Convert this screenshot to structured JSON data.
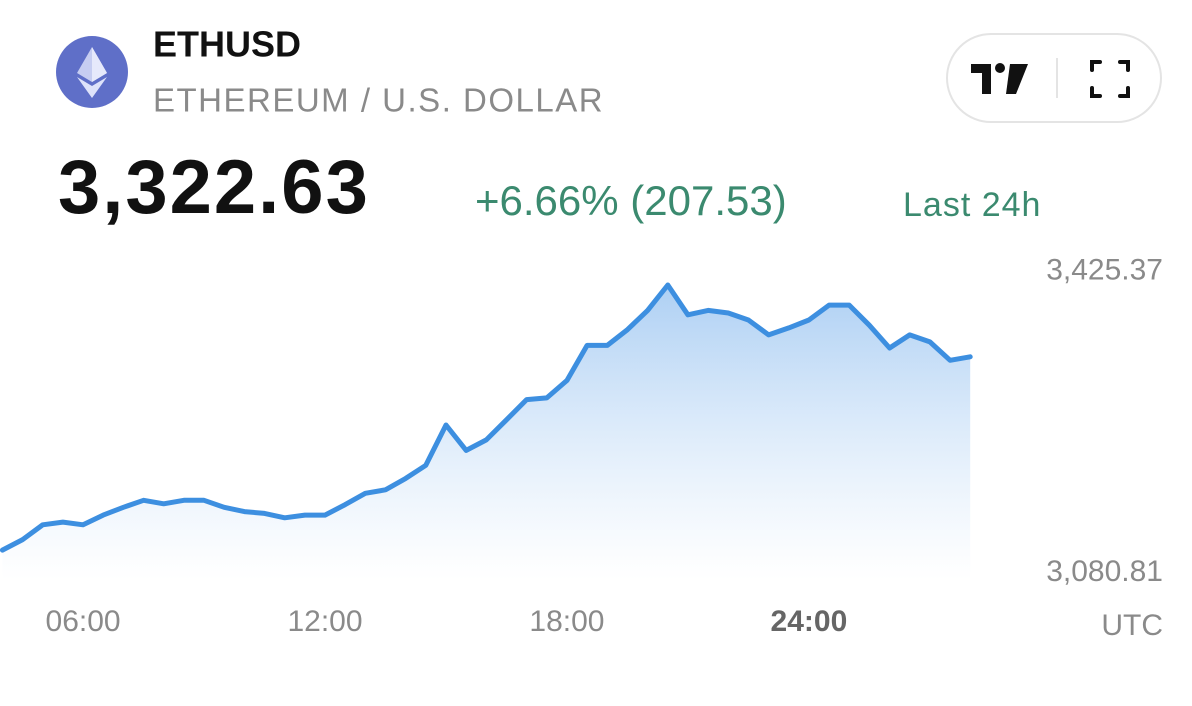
{
  "header": {
    "symbol": "ETHUSD",
    "name": "ETHEREUM / U.S. DOLLAR",
    "price": "3,322.63",
    "change": "+6.66% (207.53)",
    "period": "Last 24h"
  },
  "chart_data": {
    "type": "area",
    "color": "#3d8fe0",
    "x": [
      4,
      4.5,
      5,
      5.5,
      6,
      6.5,
      7,
      7.5,
      8,
      8.5,
      9,
      9.5,
      10,
      10.5,
      11,
      11.5,
      12,
      12.5,
      13,
      13.5,
      14,
      14.5,
      15,
      15.5,
      16,
      16.5,
      17,
      17.5,
      18,
      18.5,
      19,
      19.5,
      20,
      20.5,
      21,
      21.5,
      22,
      22.5,
      23,
      23.5,
      24,
      24.5,
      25,
      25.5,
      26,
      26.5,
      27,
      27.5,
      28
    ],
    "values": [
      3107,
      3119,
      3136,
      3139,
      3136,
      3147,
      3156,
      3164,
      3160,
      3164,
      3164,
      3156,
      3151,
      3149,
      3144,
      3147,
      3147,
      3159,
      3172,
      3176,
      3189,
      3204,
      3250,
      3221,
      3233,
      3256,
      3279,
      3281,
      3301,
      3341,
      3341,
      3359,
      3381,
      3410,
      3376,
      3381,
      3378,
      3370,
      3353,
      3361,
      3370,
      3387,
      3387,
      3364,
      3338,
      3353,
      3345,
      3324,
      3328
    ],
    "xlim": [
      3.94,
      33.5
    ],
    "ylim": [
      3050,
      3450
    ],
    "xticks": [
      {
        "value": 6,
        "label": "06:00"
      },
      {
        "value": 12,
        "label": "12:00"
      },
      {
        "value": 18,
        "label": "18:00"
      },
      {
        "value": 24,
        "label": "24:00"
      }
    ],
    "yticks": [
      {
        "value": 3425.37,
        "label": "3,425.37"
      },
      {
        "value": 3080.81,
        "label": "3,080.81"
      }
    ],
    "xlabel": "UTC"
  }
}
